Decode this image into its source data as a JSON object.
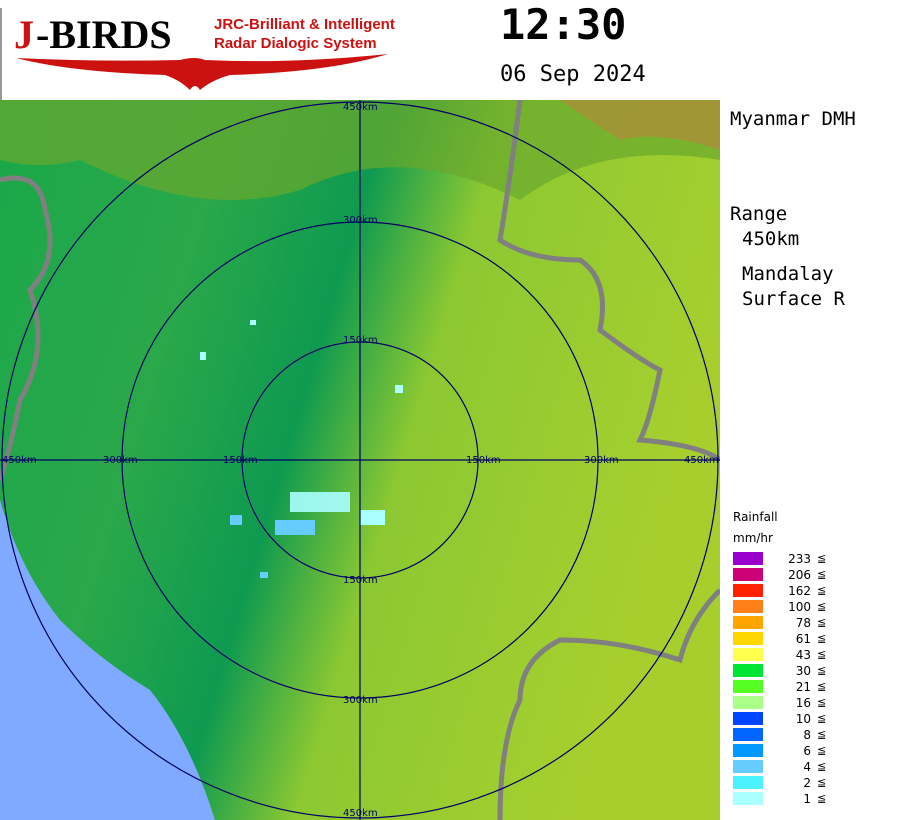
{
  "logo": {
    "brand": "J-BIRDS",
    "tagline1": "JRC-Brilliant & Intelligent",
    "tagline2": "Radar Dialogic System",
    "accent": "#cc1111"
  },
  "time": "12:30",
  "date": "06 Sep 2024",
  "side": {
    "agency": "Myanmar DMH",
    "range_label": "Range",
    "range_value": "450km",
    "site": "Mandalay",
    "product": "Surface R"
  },
  "rings": {
    "north": [
      "150km",
      "300km",
      "450km"
    ],
    "south": [
      "150km",
      "300km",
      "450km"
    ],
    "west": [
      "150km",
      "300km",
      "450km"
    ],
    "east": [
      "150km",
      "300km",
      "450km"
    ],
    "ring_color": "#000066",
    "border_color": "#808080"
  },
  "legend": {
    "title": "Rainfall",
    "unit": "mm/hr",
    "symbol": "≦",
    "items": [
      {
        "value": "233",
        "color": "#9900cc"
      },
      {
        "value": "206",
        "color": "#cc0077"
      },
      {
        "value": "162",
        "color": "#ff2200"
      },
      {
        "value": "100",
        "color": "#ff8019"
      },
      {
        "value": "78",
        "color": "#ffa500"
      },
      {
        "value": "61",
        "color": "#ffd700"
      },
      {
        "value": "43",
        "color": "#ffff4d"
      },
      {
        "value": "30",
        "color": "#00e533"
      },
      {
        "value": "21",
        "color": "#55ff22"
      },
      {
        "value": "16",
        "color": "#aaff88"
      },
      {
        "value": "10",
        "color": "#0044ff"
      },
      {
        "value": "8",
        "color": "#0066ff"
      },
      {
        "value": "6",
        "color": "#0099ff"
      },
      {
        "value": "4",
        "color": "#66ccff"
      },
      {
        "value": "2",
        "color": "#4cf2ff"
      },
      {
        "value": "1",
        "color": "#aaffff"
      }
    ]
  }
}
